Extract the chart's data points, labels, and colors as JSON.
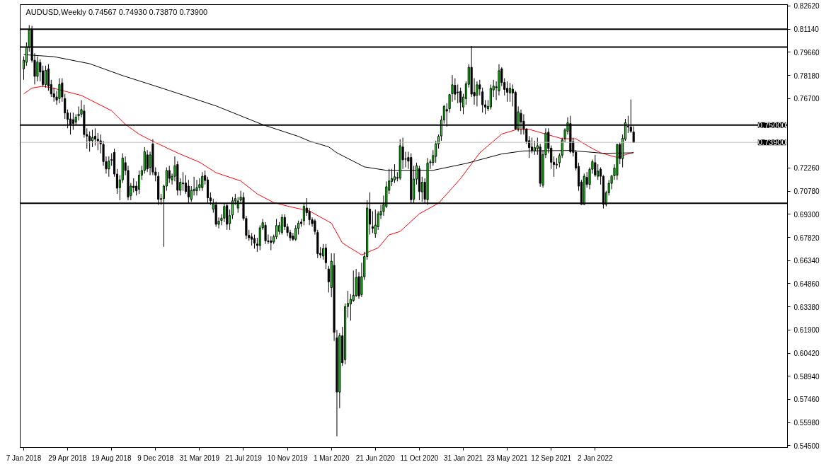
{
  "chart_data": {
    "type": "candlestick",
    "title": "AUDUSD,Weekly  0.74567 0.74930 0.73870 0.73900",
    "x": [
      "2018-01-07",
      "2018-01-14",
      "2018-01-21",
      "2018-01-28",
      "2018-02-04",
      "2018-02-11",
      "2018-02-18",
      "2018-02-25",
      "2018-03-04",
      "2018-03-11",
      "2018-03-18",
      "2018-03-25",
      "2018-04-01",
      "2018-04-08",
      "2018-04-15",
      "2018-04-22",
      "2018-04-29",
      "2018-05-06",
      "2018-05-13",
      "2018-05-20",
      "2018-05-27",
      "2018-06-03",
      "2018-06-10",
      "2018-06-17",
      "2018-06-24",
      "2018-07-01",
      "2018-07-08",
      "2018-07-15",
      "2018-07-22",
      "2018-07-29",
      "2018-08-05",
      "2018-08-12",
      "2018-08-19",
      "2018-08-26",
      "2018-09-02",
      "2018-09-09",
      "2018-09-16",
      "2018-09-23",
      "2018-09-30",
      "2018-10-07",
      "2018-10-14",
      "2018-10-21",
      "2018-10-28",
      "2018-11-04",
      "2018-11-11",
      "2018-11-18",
      "2018-11-25",
      "2018-12-02",
      "2018-12-09",
      "2018-12-16",
      "2018-12-23",
      "2018-12-30",
      "2019-01-06",
      "2019-01-13",
      "2019-01-20",
      "2019-01-27",
      "2019-02-03",
      "2019-02-10",
      "2019-02-17",
      "2019-02-24",
      "2019-03-03",
      "2019-03-10",
      "2019-03-17",
      "2019-03-24",
      "2019-03-31",
      "2019-04-07",
      "2019-04-14",
      "2019-04-21",
      "2019-04-28",
      "2019-05-05",
      "2019-05-12",
      "2019-05-19",
      "2019-05-26",
      "2019-06-02",
      "2019-06-09",
      "2019-06-16",
      "2019-06-23",
      "2019-06-30",
      "2019-07-07",
      "2019-07-14",
      "2019-07-21",
      "2019-07-28",
      "2019-08-04",
      "2019-08-11",
      "2019-08-18",
      "2019-08-25",
      "2019-09-01",
      "2019-09-08",
      "2019-09-15",
      "2019-09-22",
      "2019-09-29",
      "2019-10-06",
      "2019-10-13",
      "2019-10-20",
      "2019-10-27",
      "2019-11-03",
      "2019-11-10",
      "2019-11-17",
      "2019-11-24",
      "2019-12-01",
      "2019-12-08",
      "2019-12-15",
      "2019-12-22",
      "2019-12-29",
      "2020-01-05",
      "2020-01-12",
      "2020-01-19",
      "2020-01-26",
      "2020-02-02",
      "2020-02-09",
      "2020-02-16",
      "2020-02-23",
      "2020-03-01",
      "2020-03-08",
      "2020-03-15",
      "2020-03-22",
      "2020-03-29",
      "2020-04-05",
      "2020-04-12",
      "2020-04-19",
      "2020-04-26",
      "2020-05-03",
      "2020-05-10",
      "2020-05-17",
      "2020-05-24",
      "2020-05-31",
      "2020-06-07",
      "2020-06-14",
      "2020-06-21",
      "2020-06-28",
      "2020-07-05",
      "2020-07-12",
      "2020-07-19",
      "2020-07-26",
      "2020-08-02",
      "2020-08-09",
      "2020-08-16",
      "2020-08-23",
      "2020-08-30",
      "2020-09-06",
      "2020-09-13",
      "2020-09-20",
      "2020-09-27",
      "2020-10-04",
      "2020-10-11",
      "2020-10-18",
      "2020-10-25",
      "2020-11-01",
      "2020-11-08",
      "2020-11-15",
      "2020-11-22",
      "2020-11-29",
      "2020-12-06",
      "2020-12-13",
      "2020-12-20",
      "2020-12-27",
      "2021-01-03",
      "2021-01-10",
      "2021-01-17",
      "2021-01-24",
      "2021-01-31",
      "2021-02-07",
      "2021-02-14",
      "2021-02-21",
      "2021-02-28",
      "2021-03-07",
      "2021-03-14",
      "2021-03-21",
      "2021-03-28",
      "2021-04-04",
      "2021-04-11",
      "2021-04-18",
      "2021-04-25",
      "2021-05-02",
      "2021-05-09",
      "2021-05-16",
      "2021-05-23",
      "2021-05-30",
      "2021-06-06",
      "2021-06-13",
      "2021-06-20",
      "2021-06-27",
      "2021-07-04",
      "2021-07-11",
      "2021-07-18",
      "2021-07-25",
      "2021-08-01",
      "2021-08-08",
      "2021-08-15",
      "2021-08-22",
      "2021-08-29",
      "2021-09-05",
      "2021-09-12",
      "2021-09-19",
      "2021-09-26",
      "2021-10-03",
      "2021-10-10",
      "2021-10-17",
      "2021-10-24",
      "2021-10-31",
      "2021-11-07",
      "2021-11-14",
      "2021-11-21",
      "2021-11-28",
      "2021-12-05",
      "2021-12-12",
      "2021-12-19",
      "2021-12-26",
      "2022-01-02",
      "2022-01-09",
      "2022-01-16",
      "2022-01-23",
      "2022-01-30",
      "2022-02-06",
      "2022-02-13",
      "2022-02-20",
      "2022-02-27",
      "2022-03-06",
      "2022-03-13",
      "2022-03-20",
      "2022-03-27",
      "2022-04-03",
      "2022-04-10"
    ],
    "series": [
      {
        "type": "candlestick",
        "colors": [
          "#00ff00",
          "#00ff00",
          "#00ff00",
          "#000000",
          "#000000",
          "#00ff00",
          "#000000",
          "#000000",
          "#00ff00",
          "#000000",
          "#000000",
          "#000000",
          "#000000",
          "#00ff00",
          "#000000",
          "#000000",
          "#000000",
          "#000000",
          "#000000",
          "#00ff00",
          "#00ff00",
          "#00ff00",
          "#000000",
          "#000000",
          "#000000",
          "#00ff00",
          "#000000",
          "#000000",
          "#000000",
          "#000000",
          "#000000",
          "#00ff00",
          "#000000",
          "#000000",
          "#000000",
          "#00ff00",
          "#00ff00",
          "#000000",
          "#000000",
          "#00ff00",
          "#000000",
          "#000000",
          "#00ff00",
          "#00ff00",
          "#00ff00",
          "#000000",
          "#00ff00",
          "#000000",
          "#000000",
          "#000000",
          "#00ff00",
          "#00ff00",
          "#00ff00",
          "#000000",
          "#00ff00",
          "#00ff00",
          "#000000",
          "#00ff00",
          "#000000",
          "#000000",
          "#000000",
          "#00ff00",
          "#00ff00",
          "#00ff00",
          "#00ff00",
          "#00ff00",
          "#000000",
          "#000000",
          "#000000",
          "#00ff00",
          "#000000",
          "#00ff00",
          "#00ff00",
          "#00ff00",
          "#000000",
          "#00ff00",
          "#00ff00",
          "#00ff00",
          "#00ff00",
          "#00ff00",
          "#000000",
          "#000000",
          "#000000",
          "#000000",
          "#000000",
          "#000000",
          "#00ff00",
          "#00ff00",
          "#000000",
          "#000000",
          "#000000",
          "#00ff00",
          "#00ff00",
          "#00ff00",
          "#00ff00",
          "#000000",
          "#000000",
          "#000000",
          "#000000",
          "#00ff00",
          "#00ff00",
          "#000000",
          "#00ff00",
          "#000000",
          "#000000",
          "#000000",
          "#000000",
          "#000000",
          "#000000",
          "#00ff00",
          "#000000",
          "#000000",
          "#00ff00",
          "#000000",
          "#000000",
          "#00ff00",
          "#000000",
          "#00ff00",
          "#00ff00",
          "#00ff00",
          "#00ff00",
          "#00ff00",
          "#000000",
          "#00ff00",
          "#00ff00",
          "#00ff00",
          "#000000",
          "#000000",
          "#00ff00",
          "#00ff00",
          "#00ff00",
          "#00ff00",
          "#00ff00",
          "#00ff00",
          "#00ff00",
          "#00ff00",
          "#000000",
          "#00ff00",
          "#000000",
          "#000000",
          "#000000",
          "#000000",
          "#00ff00",
          "#00ff00",
          "#000000",
          "#00ff00",
          "#000000",
          "#00ff00",
          "#00ff00",
          "#00ff00",
          "#00ff00",
          "#00ff00",
          "#00ff00",
          "#00ff00",
          "#000000",
          "#00ff00",
          "#00ff00",
          "#000000",
          "#000000",
          "#000000",
          "#00ff00",
          "#00ff00",
          "#00ff00",
          "#000000",
          "#000000",
          "#00ff00",
          "#000000",
          "#000000",
          "#000000",
          "#00ff00",
          "#00ff00",
          "#00ff00",
          "#000000",
          "#00ff00",
          "#000000",
          "#000000",
          "#000000",
          "#00ff00",
          "#000000",
          "#000000",
          "#00ff00",
          "#000000",
          "#000000",
          "#000000",
          "#000000",
          "#000000",
          "#00ff00",
          "#00ff00",
          "#000000",
          "#00ff00",
          "#00ff00",
          "#000000",
          "#000000",
          "#000000",
          "#00ff00",
          "#00ff00",
          "#00ff00",
          "#00ff00",
          "#00ff00",
          "#000000",
          "#000000",
          "#000000",
          "#000000",
          "#000000",
          "#00ff00",
          "#000000",
          "#00ff00",
          "#00ff00",
          "#000000",
          "#00ff00",
          "#000000",
          "#000000",
          "#00ff00",
          "#00ff00",
          "#00ff00",
          "#00ff00",
          "#00ff00",
          "#000000",
          "#00ff00",
          "#00ff00",
          "#000000",
          "#000000",
          "#000000"
        ],
        "ohlc": [
          [
            0.786,
            0.794,
            0.779,
            0.7915
          ],
          [
            0.7902,
            0.803,
            0.788,
            0.7997
          ],
          [
            0.7997,
            0.814,
            0.797,
            0.8109
          ],
          [
            0.8109,
            0.8135,
            0.79,
            0.7915
          ],
          [
            0.7915,
            0.796,
            0.776,
            0.7812
          ],
          [
            0.7812,
            0.794,
            0.778,
            0.7905
          ],
          [
            0.79,
            0.792,
            0.778,
            0.784
          ],
          [
            0.7848,
            0.788,
            0.7745,
            0.776
          ],
          [
            0.776,
            0.788,
            0.774,
            0.785
          ],
          [
            0.786,
            0.789,
            0.772,
            0.775
          ],
          [
            0.776,
            0.779,
            0.768,
            0.77
          ],
          [
            0.77,
            0.774,
            0.765,
            0.768
          ],
          [
            0.768,
            0.772,
            0.763,
            0.766
          ],
          [
            0.767,
            0.78,
            0.764,
            0.776
          ],
          [
            0.777,
            0.78,
            0.765,
            0.768
          ],
          [
            0.767,
            0.77,
            0.754,
            0.7578
          ],
          [
            0.7578,
            0.76,
            0.748,
            0.7537
          ],
          [
            0.754,
            0.758,
            0.744,
            0.75
          ],
          [
            0.7535,
            0.758,
            0.747,
            0.751
          ],
          [
            0.752,
            0.757,
            0.75,
            0.755
          ],
          [
            0.756,
            0.762,
            0.753,
            0.757
          ],
          [
            0.757,
            0.766,
            0.755,
            0.76
          ],
          [
            0.759,
            0.763,
            0.742,
            0.744
          ],
          [
            0.744,
            0.748,
            0.735,
            0.743
          ],
          [
            0.743,
            0.746,
            0.733,
            0.74
          ],
          [
            0.74,
            0.747,
            0.736,
            0.742
          ],
          [
            0.743,
            0.748,
            0.737,
            0.741
          ],
          [
            0.741,
            0.745,
            0.734,
            0.74
          ],
          [
            0.74,
            0.744,
            0.732,
            0.738
          ],
          [
            0.7377,
            0.74,
            0.724,
            0.7267
          ],
          [
            0.7267,
            0.73,
            0.719,
            0.722
          ],
          [
            0.722,
            0.73,
            0.717,
            0.727
          ],
          [
            0.728,
            0.732,
            0.724,
            0.7275
          ],
          [
            0.7326,
            0.735,
            0.717,
            0.7187
          ],
          [
            0.7187,
            0.722,
            0.706,
            0.7097
          ],
          [
            0.71,
            0.718,
            0.702,
            0.715
          ],
          [
            0.715,
            0.732,
            0.713,
            0.729
          ],
          [
            0.726,
            0.73,
            0.718,
            0.721
          ],
          [
            0.721,
            0.724,
            0.702,
            0.704
          ],
          [
            0.705,
            0.713,
            0.702,
            0.711
          ],
          [
            0.711,
            0.716,
            0.707,
            0.71
          ],
          [
            0.711,
            0.714,
            0.705,
            0.708
          ],
          [
            0.709,
            0.721,
            0.706,
            0.718
          ],
          [
            0.718,
            0.724,
            0.715,
            0.721
          ],
          [
            0.721,
            0.736,
            0.719,
            0.733
          ],
          [
            0.731,
            0.734,
            0.72,
            0.722
          ],
          [
            0.723,
            0.733,
            0.718,
            0.731
          ],
          [
            0.738,
            0.741,
            0.718,
            0.72
          ],
          [
            0.72,
            0.723,
            0.714,
            0.718
          ],
          [
            0.7173,
            0.72,
            0.699,
            0.7025
          ],
          [
            0.7025,
            0.706,
            0.699,
            0.703
          ],
          [
            0.703,
            0.712,
            0.6722,
            0.711
          ],
          [
            0.711,
            0.723,
            0.708,
            0.721
          ],
          [
            0.721,
            0.724,
            0.713,
            0.716
          ],
          [
            0.715,
            0.719,
            0.712,
            0.7173
          ],
          [
            0.7173,
            0.73,
            0.714,
            0.724
          ],
          [
            0.7248,
            0.727,
            0.705,
            0.7083
          ],
          [
            0.7083,
            0.716,
            0.705,
            0.7135
          ],
          [
            0.713,
            0.72,
            0.708,
            0.7125
          ],
          [
            0.713,
            0.718,
            0.706,
            0.7075
          ],
          [
            0.711,
            0.715,
            0.7,
            0.7041
          ],
          [
            0.7026,
            0.711,
            0.701,
            0.7083
          ],
          [
            0.708,
            0.717,
            0.705,
            0.709
          ],
          [
            0.708,
            0.715,
            0.705,
            0.71
          ],
          [
            0.71,
            0.716,
            0.708,
            0.712
          ],
          [
            0.71,
            0.72,
            0.708,
            0.7173
          ],
          [
            0.7178,
            0.721,
            0.712,
            0.7146
          ],
          [
            0.715,
            0.717,
            0.7,
            0.7035
          ],
          [
            0.7035,
            0.707,
            0.699,
            0.7016
          ],
          [
            0.6963,
            0.703,
            0.694,
            0.6996
          ],
          [
            0.699,
            0.701,
            0.685,
            0.6866
          ],
          [
            0.6866,
            0.691,
            0.684,
            0.6886
          ],
          [
            0.689,
            0.693,
            0.686,
            0.6905
          ],
          [
            0.6905,
            0.7,
            0.688,
            0.698
          ],
          [
            0.6985,
            0.7,
            0.683,
            0.6866
          ],
          [
            0.687,
            0.696,
            0.683,
            0.6921
          ],
          [
            0.6925,
            0.704,
            0.69,
            0.7016
          ],
          [
            0.7015,
            0.706,
            0.699,
            0.703
          ],
          [
            0.697,
            0.704,
            0.694,
            0.7015
          ],
          [
            0.702,
            0.708,
            0.7,
            0.704
          ],
          [
            0.7038,
            0.707,
            0.689,
            0.6903
          ],
          [
            0.6903,
            0.692,
            0.677,
            0.6795
          ],
          [
            0.6795,
            0.683,
            0.676,
            0.678
          ],
          [
            0.6785,
            0.681,
            0.673,
            0.677
          ],
          [
            0.6775,
            0.68,
            0.671,
            0.6745
          ],
          [
            0.674,
            0.678,
            0.669,
            0.673
          ],
          [
            0.673,
            0.686,
            0.67,
            0.6843
          ],
          [
            0.6843,
            0.69,
            0.683,
            0.6876
          ],
          [
            0.686,
            0.688,
            0.674,
            0.676
          ],
          [
            0.676,
            0.68,
            0.674,
            0.6755
          ],
          [
            0.676,
            0.679,
            0.67,
            0.675
          ],
          [
            0.6753,
            0.68,
            0.674,
            0.6786
          ],
          [
            0.6786,
            0.69,
            0.677,
            0.6858
          ],
          [
            0.682,
            0.688,
            0.68,
            0.6858
          ],
          [
            0.6813,
            0.693,
            0.68,
            0.691
          ],
          [
            0.691,
            0.693,
            0.683,
            0.685
          ],
          [
            0.685,
            0.687,
            0.679,
            0.6813
          ],
          [
            0.6813,
            0.683,
            0.676,
            0.678
          ],
          [
            0.679,
            0.681,
            0.676,
            0.677
          ],
          [
            0.677,
            0.686,
            0.676,
            0.684
          ],
          [
            0.684,
            0.689,
            0.68,
            0.6873
          ],
          [
            0.688,
            0.69,
            0.685,
            0.687
          ],
          [
            0.6888,
            0.7,
            0.686,
            0.6981
          ],
          [
            0.697,
            0.7033,
            0.692,
            0.694
          ],
          [
            0.6948,
            0.697,
            0.686,
            0.6895
          ],
          [
            0.6895,
            0.691,
            0.685,
            0.687
          ],
          [
            0.6888,
            0.69,
            0.68,
            0.682
          ],
          [
            0.6813,
            0.683,
            0.665,
            0.6678
          ],
          [
            0.668,
            0.672,
            0.665,
            0.667
          ],
          [
            0.6663,
            0.674,
            0.664,
            0.6711
          ],
          [
            0.6715,
            0.674,
            0.658,
            0.662
          ],
          [
            0.658,
            0.66,
            0.643,
            0.6498
          ],
          [
            0.6461,
            0.668,
            0.64,
            0.663
          ],
          [
            0.6603,
            0.668,
            0.612,
            0.6175
          ],
          [
            0.614,
            0.619,
            0.551,
            0.5793
          ],
          [
            0.5793,
            0.617,
            0.569,
            0.6153
          ],
          [
            0.6153,
            0.621,
            0.596,
            0.598
          ],
          [
            0.6,
            0.636,
            0.597,
            0.634
          ],
          [
            0.634,
            0.644,
            0.627,
            0.636
          ],
          [
            0.6356,
            0.642,
            0.625,
            0.6386
          ],
          [
            0.6378,
            0.657,
            0.637,
            0.6411
          ],
          [
            0.6411,
            0.658,
            0.64,
            0.6525
          ],
          [
            0.6531,
            0.656,
            0.639,
            0.6408
          ],
          [
            0.6416,
            0.662,
            0.64,
            0.6531
          ],
          [
            0.653,
            0.669,
            0.651,
            0.666
          ],
          [
            0.666,
            0.702,
            0.664,
            0.697
          ],
          [
            0.6963,
            0.707,
            0.68,
            0.6866
          ],
          [
            0.685,
            0.695,
            0.681,
            0.684
          ],
          [
            0.6805,
            0.696,
            0.678,
            0.6861
          ],
          [
            0.685,
            0.695,
            0.683,
            0.6933
          ],
          [
            0.6925,
            0.699,
            0.69,
            0.6948
          ],
          [
            0.6948,
            0.705,
            0.692,
            0.6993
          ],
          [
            0.698,
            0.714,
            0.697,
            0.7106
          ],
          [
            0.7083,
            0.722,
            0.706,
            0.7143
          ],
          [
            0.714,
            0.722,
            0.711,
            0.7158
          ],
          [
            0.715,
            0.725,
            0.713,
            0.717
          ],
          [
            0.7165,
            0.72,
            0.714,
            0.716
          ],
          [
            0.7161,
            0.741,
            0.715,
            0.7368
          ],
          [
            0.736,
            0.742,
            0.722,
            0.7278
          ],
          [
            0.7285,
            0.733,
            0.723,
            0.7282
          ],
          [
            0.7293,
            0.733,
            0.722,
            0.727
          ],
          [
            0.7293,
            0.732,
            0.7,
            0.7023
          ],
          [
            0.7026,
            0.724,
            0.7,
            0.7155
          ],
          [
            0.7155,
            0.726,
            0.712,
            0.724
          ],
          [
            0.7222,
            0.724,
            0.702,
            0.7075
          ],
          [
            0.7073,
            0.717,
            0.701,
            0.7135
          ],
          [
            0.7135,
            0.716,
            0.7,
            0.7026
          ],
          [
            0.7023,
            0.729,
            0.699,
            0.7258
          ],
          [
            0.726,
            0.728,
            0.722,
            0.7265
          ],
          [
            0.726,
            0.734,
            0.724,
            0.7305
          ],
          [
            0.73,
            0.74,
            0.726,
            0.738
          ],
          [
            0.738,
            0.744,
            0.735,
            0.7428
          ],
          [
            0.7431,
            0.756,
            0.74,
            0.7533
          ],
          [
            0.7533,
            0.763,
            0.751,
            0.762
          ],
          [
            0.76,
            0.764,
            0.749,
            0.759
          ],
          [
            0.7605,
            0.77,
            0.758,
            0.7695
          ],
          [
            0.7701,
            0.782,
            0.765,
            0.7758
          ],
          [
            0.7755,
            0.78,
            0.766,
            0.7698
          ],
          [
            0.7712,
            0.776,
            0.764,
            0.7708
          ],
          [
            0.7716,
            0.774,
            0.759,
            0.7646
          ],
          [
            0.7616,
            0.77,
            0.757,
            0.768
          ],
          [
            0.767,
            0.778,
            0.763,
            0.7764
          ],
          [
            0.7761,
            0.789,
            0.774,
            0.787
          ],
          [
            0.787,
            0.8006,
            0.768,
            0.7698
          ],
          [
            0.771,
            0.78,
            0.763,
            0.7686
          ],
          [
            0.7691,
            0.778,
            0.762,
            0.7758
          ],
          [
            0.7758,
            0.779,
            0.769,
            0.7731
          ],
          [
            0.7713,
            0.774,
            0.758,
            0.763
          ],
          [
            0.763,
            0.766,
            0.757,
            0.7615
          ],
          [
            0.7605,
            0.766,
            0.759,
            0.762
          ],
          [
            0.7616,
            0.776,
            0.76,
            0.7736
          ],
          [
            0.7725,
            0.779,
            0.768,
            0.775
          ],
          [
            0.7745,
            0.778,
            0.766,
            0.774
          ],
          [
            0.772,
            0.789,
            0.769,
            0.7848
          ],
          [
            0.786,
            0.787,
            0.775,
            0.7773
          ],
          [
            0.7773,
            0.78,
            0.769,
            0.7728
          ],
          [
            0.7736,
            0.778,
            0.765,
            0.771
          ],
          [
            0.7706,
            0.777,
            0.765,
            0.7736
          ],
          [
            0.773,
            0.776,
            0.762,
            0.7706
          ],
          [
            0.771,
            0.772,
            0.747,
            0.7476
          ],
          [
            0.7476,
            0.762,
            0.746,
            0.7585
          ],
          [
            0.7575,
            0.76,
            0.744,
            0.7521
          ],
          [
            0.7525,
            0.757,
            0.744,
            0.7476
          ],
          [
            0.7476,
            0.748,
            0.738,
            0.7395
          ],
          [
            0.7401,
            0.743,
            0.729,
            0.7356
          ],
          [
            0.736,
            0.742,
            0.732,
            0.7338
          ],
          [
            0.7335,
            0.74,
            0.731,
            0.7356
          ],
          [
            0.735,
            0.742,
            0.731,
            0.7368
          ],
          [
            0.736,
            0.738,
            0.7106,
            0.7128
          ],
          [
            0.7116,
            0.734,
            0.71,
            0.7311
          ],
          [
            0.7311,
            0.748,
            0.729,
            0.745
          ],
          [
            0.7455,
            0.748,
            0.732,
            0.735
          ],
          [
            0.7353,
            0.737,
            0.722,
            0.7263
          ],
          [
            0.7263,
            0.73,
            0.717,
            0.7248
          ],
          [
            0.7245,
            0.729,
            0.722,
            0.725
          ],
          [
            0.726,
            0.732,
            0.723,
            0.7305
          ],
          [
            0.7308,
            0.742,
            0.729,
            0.7405
          ],
          [
            0.7416,
            0.748,
            0.739,
            0.747
          ],
          [
            0.7461,
            0.755,
            0.744,
            0.7515
          ],
          [
            0.751,
            0.756,
            0.732,
            0.733
          ],
          [
            0.7395,
            0.742,
            0.73,
            0.7326
          ],
          [
            0.7326,
            0.734,
            0.721,
            0.7226
          ],
          [
            0.7236,
            0.726,
            0.708,
            0.711
          ],
          [
            0.7136,
            0.715,
            0.699,
            0.6993
          ],
          [
            0.6993,
            0.719,
            0.699,
            0.7173
          ],
          [
            0.7166,
            0.72,
            0.71,
            0.7121
          ],
          [
            0.7121,
            0.723,
            0.709,
            0.7218
          ],
          [
            0.7218,
            0.728,
            0.719,
            0.7266
          ],
          [
            0.726,
            0.731,
            0.717,
            0.7181
          ],
          [
            0.7173,
            0.725,
            0.715,
            0.7206
          ],
          [
            0.7218,
            0.723,
            0.712,
            0.7173
          ],
          [
            0.7173,
            0.718,
            0.6967,
            0.6993
          ],
          [
            0.6993,
            0.708,
            0.698,
            0.7068
          ],
          [
            0.7068,
            0.715,
            0.705,
            0.7128
          ],
          [
            0.7128,
            0.718,
            0.709,
            0.7176
          ],
          [
            0.7176,
            0.725,
            0.715,
            0.7226
          ],
          [
            0.718,
            0.738,
            0.715,
            0.7376
          ],
          [
            0.7376,
            0.739,
            0.725,
            0.7286
          ],
          [
            0.7286,
            0.744,
            0.723,
            0.7416
          ],
          [
            0.741,
            0.754,
            0.74,
            0.7515
          ],
          [
            0.7492,
            0.756,
            0.745,
            0.7488
          ],
          [
            0.7488,
            0.7664,
            0.745,
            0.7461
          ],
          [
            0.74567,
            0.7493,
            0.7387,
            0.739
          ]
        ]
      },
      {
        "type": "line",
        "color": "#ff0000",
        "x": [
          "2018-01-07",
          "2018-01-28",
          "2018-02-25",
          "2018-03-25",
          "2018-06-03",
          "2018-08-19",
          "2018-09-23",
          "2018-10-28",
          "2018-12-02",
          "2019-02-03",
          "2019-03-31",
          "2019-05-12",
          "2019-07-14",
          "2019-08-25",
          "2019-10-06",
          "2019-11-17",
          "2020-01-05",
          "2020-03-01",
          "2020-03-29",
          "2020-05-17",
          "2020-06-28",
          "2020-07-26",
          "2020-08-23",
          "2020-10-11",
          "2020-11-29",
          "2021-01-24",
          "2021-03-14",
          "2021-05-09",
          "2021-06-13",
          "2021-07-18",
          "2021-08-29",
          "2021-10-10",
          "2021-11-14",
          "2021-12-19",
          "2022-01-16",
          "2022-02-27",
          "2022-03-20",
          "2022-04-10"
        ],
        "values": [
          0.77,
          0.7737,
          0.7749,
          0.7735,
          0.769,
          0.7592,
          0.7505,
          0.7442,
          0.7397,
          0.7322,
          0.7263,
          0.7196,
          0.7143,
          0.706,
          0.7005,
          0.6978,
          0.6951,
          0.6873,
          0.6746,
          0.667,
          0.6715,
          0.6798,
          0.682,
          0.6933,
          0.7001,
          0.7158,
          0.7323,
          0.7443,
          0.747,
          0.7473,
          0.7443,
          0.7413,
          0.7413,
          0.736,
          0.7323,
          0.7293,
          0.7311,
          0.7326
        ]
      },
      {
        "type": "line",
        "color": "#000000",
        "x": [
          "2018-01-07",
          "2018-03-25",
          "2018-06-24",
          "2018-09-16",
          "2018-12-16",
          "2019-02-03",
          "2019-05-12",
          "2019-09-08",
          "2019-12-08",
          "2020-01-05",
          "2020-02-23",
          "2020-03-15",
          "2020-05-24",
          "2020-07-19",
          "2020-11-15",
          "2021-02-07",
          "2021-05-09",
          "2021-07-04",
          "2021-10-31",
          "2022-01-23",
          "2022-04-10"
        ],
        "values": [
          0.7951,
          0.7938,
          0.7893,
          0.7817,
          0.7744,
          0.7704,
          0.7623,
          0.7503,
          0.7428,
          0.7398,
          0.7361,
          0.7323,
          0.7233,
          0.7211,
          0.7211,
          0.7255,
          0.7316,
          0.7335,
          0.7338,
          0.732,
          0.7323
        ]
      }
    ],
    "xlim": [
      "2017-12-29",
      "2023-05-07"
    ],
    "xticks": [
      {
        "value": "2018-01-07",
        "label": "7 Jan 2018"
      },
      {
        "value": "2018-04-29",
        "label": "29 Apr 2018"
      },
      {
        "value": "2018-08-19",
        "label": "19 Aug 2018"
      },
      {
        "value": "2018-12-09",
        "label": "9 Dec 2018"
      },
      {
        "value": "2019-03-31",
        "label": "31 Mar 2019"
      },
      {
        "value": "2019-07-21",
        "label": "21 Jul 2019"
      },
      {
        "value": "2019-11-10",
        "label": "10 Nov 2019"
      },
      {
        "value": "2020-03-01",
        "label": "1 Mar 2020"
      },
      {
        "value": "2020-06-21",
        "label": "21 Jun 2020"
      },
      {
        "value": "2020-10-11",
        "label": "11 Oct 2020"
      },
      {
        "value": "2021-01-31",
        "label": "31 Jan 2021"
      },
      {
        "value": "2021-05-23",
        "label": "23 May 2021"
      },
      {
        "value": "2021-09-12",
        "label": "12 Sep 2021"
      },
      {
        "value": "2022-01-02",
        "label": "2 Jan 2022"
      }
    ],
    "ylim": [
      0.5438,
      0.8271
    ],
    "yticks": [
      {
        "value": 0.545,
        "label": "0.54500"
      },
      {
        "value": 0.5598,
        "label": "0.55980"
      },
      {
        "value": 0.5746,
        "label": "0.57460"
      },
      {
        "value": 0.5894,
        "label": "0.58940"
      },
      {
        "value": 0.6042,
        "label": "0.60420"
      },
      {
        "value": 0.619,
        "label": "0.61900"
      },
      {
        "value": 0.6338,
        "label": "0.63380"
      },
      {
        "value": 0.6486,
        "label": "0.64860"
      },
      {
        "value": 0.6634,
        "label": "0.66340"
      },
      {
        "value": 0.6782,
        "label": "0.67820"
      },
      {
        "value": 0.693,
        "label": "0.69300"
      },
      {
        "value": 0.7078,
        "label": "0.70780"
      },
      {
        "value": 0.7226,
        "label": "0.72260"
      },
      {
        "value": 0.767,
        "label": "0.76700"
      },
      {
        "value": 0.7818,
        "label": "0.78180"
      },
      {
        "value": 0.7966,
        "label": "0.79660"
      },
      {
        "value": 0.8114,
        "label": "0.81140"
      },
      {
        "value": 0.8262,
        "label": "0.82620"
      }
    ],
    "ref_lines": [
      {
        "axis": "y",
        "value": 0.8114,
        "color": "#000000"
      },
      {
        "axis": "y",
        "value": 0.8,
        "color": "#000000"
      },
      {
        "axis": "y",
        "value": 0.75,
        "color": "#000000",
        "label": "0.75000"
      },
      {
        "axis": "y",
        "value": 0.7,
        "color": "#000000"
      },
      {
        "axis": "y",
        "value": 0.739,
        "color": "#c0c0c0",
        "label": "0.73900"
      }
    ]
  }
}
